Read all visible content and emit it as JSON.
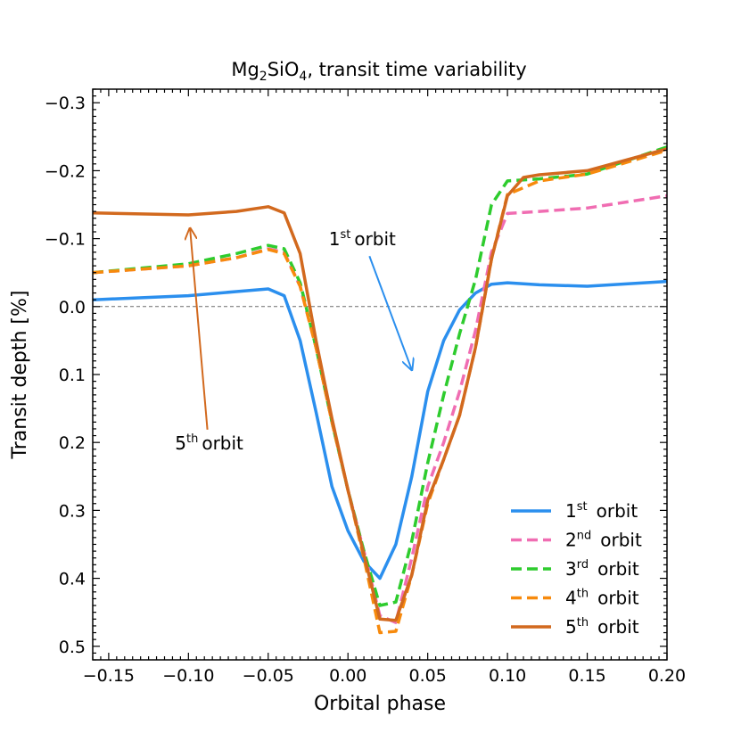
{
  "chart_data": {
    "type": "line",
    "title": "Mg2SiO4, transit time variability",
    "title_parts": {
      "a": "Mg",
      "s1": "2",
      "b": "SiO",
      "s2": "4",
      "c": ", transit time variability"
    },
    "xlabel": "Orbital phase",
    "ylabel": "Transit depth [%]",
    "xlim": [
      -0.16,
      0.2
    ],
    "ylim": [
      0.52,
      -0.32
    ],
    "x_ticks": [
      -0.15,
      -0.1,
      -0.05,
      0.0,
      0.05,
      0.1,
      0.15,
      0.2
    ],
    "x_tick_labels": [
      "−0.15",
      "−0.10",
      "−0.05",
      "0.00",
      "0.05",
      "0.10",
      "0.15",
      "0.20"
    ],
    "y_ticks": [
      -0.3,
      -0.2,
      -0.1,
      0.0,
      0.1,
      0.2,
      0.3,
      0.4,
      0.5
    ],
    "y_tick_labels": [
      "−0.3",
      "−0.2",
      "−0.1",
      "0.0",
      "0.1",
      "0.2",
      "0.3",
      "0.4",
      "0.5"
    ],
    "zero_line": 0.0,
    "series": [
      {
        "name": "1st orbit",
        "ord": "1",
        "sup": "st",
        "word": "orbit",
        "color": "#2b8fee",
        "dash": "solid",
        "x": [
          -0.16,
          -0.1,
          -0.07,
          -0.05,
          -0.04,
          -0.03,
          -0.02,
          -0.01,
          0.0,
          0.01,
          0.02,
          0.03,
          0.04,
          0.05,
          0.06,
          0.07,
          0.08,
          0.09,
          0.1,
          0.12,
          0.15,
          0.2
        ],
        "y": [
          -0.01,
          -0.016,
          -0.022,
          -0.026,
          -0.016,
          0.05,
          0.155,
          0.265,
          0.33,
          0.375,
          0.4,
          0.35,
          0.25,
          0.125,
          0.05,
          0.005,
          -0.02,
          -0.033,
          -0.035,
          -0.032,
          -0.03,
          -0.037
        ]
      },
      {
        "name": "2nd orbit",
        "ord": "2",
        "sup": "nd",
        "word": "orbit",
        "color": "#f06db2",
        "dash": "dashed",
        "x": [
          -0.16,
          -0.1,
          -0.07,
          -0.05,
          -0.04,
          -0.03,
          -0.02,
          -0.01,
          0.0,
          0.01,
          0.02,
          0.03,
          0.04,
          0.05,
          0.06,
          0.07,
          0.08,
          0.09,
          0.1,
          0.12,
          0.15,
          0.2
        ],
        "y": [
          -0.05,
          -0.06,
          -0.072,
          -0.085,
          -0.08,
          -0.03,
          0.06,
          0.17,
          0.27,
          0.36,
          0.455,
          0.465,
          0.37,
          0.265,
          0.2,
          0.125,
          0.035,
          -0.08,
          -0.137,
          -0.14,
          -0.145,
          -0.163
        ]
      },
      {
        "name": "3rd orbit",
        "ord": "3",
        "sup": "rd",
        "word": "orbit",
        "color": "#2ecc2e",
        "dash": "dashed",
        "x": [
          -0.16,
          -0.1,
          -0.07,
          -0.05,
          -0.04,
          -0.03,
          -0.02,
          -0.01,
          0.0,
          0.01,
          0.02,
          0.03,
          0.04,
          0.05,
          0.06,
          0.07,
          0.08,
          0.09,
          0.1,
          0.12,
          0.15,
          0.2
        ],
        "y": [
          -0.05,
          -0.063,
          -0.078,
          -0.09,
          -0.085,
          -0.035,
          0.06,
          0.17,
          0.27,
          0.36,
          0.44,
          0.435,
          0.345,
          0.23,
          0.13,
          0.04,
          -0.04,
          -0.15,
          -0.185,
          -0.188,
          -0.195,
          -0.235
        ]
      },
      {
        "name": "4th orbit",
        "ord": "4",
        "sup": "th",
        "word": "orbit",
        "color": "#f78a0d",
        "dash": "dashed",
        "x": [
          -0.16,
          -0.1,
          -0.07,
          -0.05,
          -0.04,
          -0.03,
          -0.02,
          -0.01,
          0.0,
          0.01,
          0.02,
          0.03,
          0.04,
          0.05,
          0.06,
          0.07,
          0.08,
          0.09,
          0.1,
          0.12,
          0.15,
          0.2
        ],
        "y": [
          -0.05,
          -0.06,
          -0.072,
          -0.084,
          -0.078,
          -0.03,
          0.06,
          0.17,
          0.27,
          0.37,
          0.48,
          0.478,
          0.395,
          0.29,
          0.225,
          0.16,
          0.06,
          -0.07,
          -0.165,
          -0.185,
          -0.195,
          -0.23
        ]
      },
      {
        "name": "5th orbit",
        "ord": "5",
        "sup": "th",
        "word": "orbit",
        "color": "#d2691e",
        "dash": "solid",
        "x": [
          -0.16,
          -0.1,
          -0.07,
          -0.05,
          -0.04,
          -0.03,
          -0.02,
          -0.01,
          0.0,
          0.01,
          0.02,
          0.03,
          0.04,
          0.05,
          0.06,
          0.07,
          0.08,
          0.09,
          0.1,
          0.11,
          0.12,
          0.15,
          0.2
        ],
        "y": [
          -0.138,
          -0.135,
          -0.14,
          -0.147,
          -0.138,
          -0.078,
          0.05,
          0.165,
          0.27,
          0.365,
          0.46,
          0.462,
          0.395,
          0.285,
          0.225,
          0.16,
          0.06,
          -0.07,
          -0.163,
          -0.19,
          -0.194,
          -0.2,
          -0.232
        ]
      }
    ],
    "annotations": [
      {
        "ord": "1",
        "sup": "st",
        "word": "orbit",
        "color": "#2b8fee",
        "xytext": [
          0.009,
          -0.09
        ],
        "xy": [
          0.04,
          0.093
        ]
      },
      {
        "ord": "5",
        "sup": "th",
        "word": "orbit",
        "color": "#d2691e",
        "xytext": [
          -0.087,
          0.21
        ],
        "xy": [
          -0.099,
          -0.115
        ]
      }
    ],
    "legend_position": "bottom-right"
  }
}
